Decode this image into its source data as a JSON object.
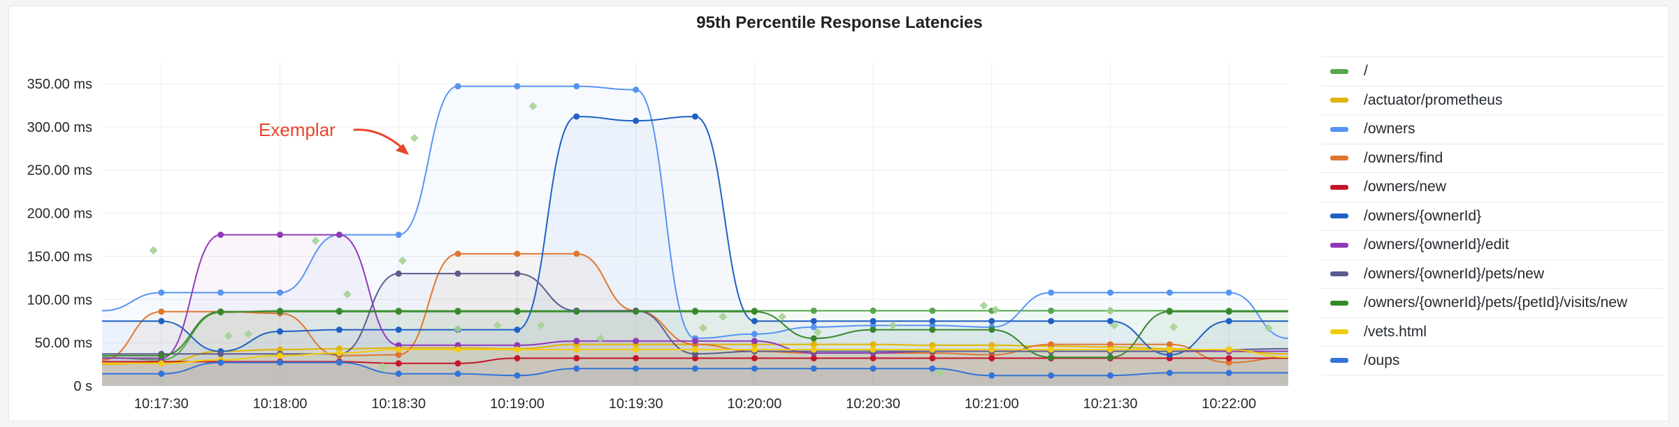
{
  "panel": {
    "title": "95th Percentile Response Latencies"
  },
  "annotation": {
    "text": "Exemplar"
  },
  "legend": [
    {
      "label": "/",
      "color": "#56a64b"
    },
    {
      "label": "/actuator/prometheus",
      "color": "#e0b400"
    },
    {
      "label": "/owners",
      "color": "#5794f2"
    },
    {
      "label": "/owners/find",
      "color": "#e0752d"
    },
    {
      "label": "/owners/new",
      "color": "#c4162a"
    },
    {
      "label": "/owners/{ownerId}",
      "color": "#1f60c4"
    },
    {
      "label": "/owners/{ownerId}/edit",
      "color": "#8f3bb8"
    },
    {
      "label": "/owners/{ownerId}/pets/new",
      "color": "#5d5c8e"
    },
    {
      "label": "/owners/{ownerId}/pets/{petId}/visits/new",
      "color": "#37872d"
    },
    {
      "label": "/vets.html",
      "color": "#f2cc0c"
    },
    {
      "label": "/oups",
      "color": "#3274d9"
    }
  ],
  "chart_data": {
    "type": "line",
    "title": "95th Percentile Response Latencies",
    "ylim": [
      0,
      375
    ],
    "yticks": [
      0,
      50,
      100,
      150,
      200,
      250,
      300,
      350
    ],
    "ytick_labels": [
      "0 s",
      "50.00 ms",
      "100.00 ms",
      "150.00 ms",
      "200.00 ms",
      "250.00 ms",
      "300.00 ms",
      "350.00 ms"
    ],
    "xlim": [
      "10:17:15",
      "10:22:15"
    ],
    "xticks": [
      "10:17:30",
      "10:18:00",
      "10:18:30",
      "10:19:00",
      "10:19:30",
      "10:20:00",
      "10:20:30",
      "10:21:00",
      "10:21:30",
      "10:22:00"
    ],
    "x": [
      "10:17:15",
      "10:17:30",
      "10:17:45",
      "10:18:00",
      "10:18:15",
      "10:18:30",
      "10:18:45",
      "10:19:00",
      "10:19:15",
      "10:19:30",
      "10:19:45",
      "10:20:00",
      "10:20:15",
      "10:20:30",
      "10:20:45",
      "10:21:00",
      "10:21:15",
      "10:21:30",
      "10:21:45",
      "10:22:00",
      "10:22:15"
    ],
    "grid": true,
    "legend_position": "right",
    "series": [
      {
        "name": "/",
        "color": "#56a64b",
        "values": [
          33,
          30,
          85,
          87,
          87,
          87,
          87,
          87,
          87,
          87,
          87,
          87,
          87,
          87,
          87,
          87,
          87,
          87,
          87,
          87,
          87
        ]
      },
      {
        "name": "/actuator/prometheus",
        "color": "#e0b400",
        "values": [
          25,
          27,
          40,
          42,
          43,
          44,
          44,
          43,
          48,
          48,
          48,
          48,
          48,
          48,
          47,
          47,
          46,
          45,
          43,
          40,
          37
        ]
      },
      {
        "name": "/owners",
        "color": "#5794f2",
        "values": [
          87,
          108,
          108,
          108,
          175,
          175,
          347,
          347,
          347,
          343,
          55,
          60,
          68,
          70,
          70,
          68,
          108,
          108,
          108,
          108,
          55
        ]
      },
      {
        "name": "/owners/find",
        "color": "#e0752d",
        "values": [
          30,
          86,
          86,
          84,
          35,
          36,
          153,
          153,
          153,
          87,
          48,
          40,
          38,
          38,
          38,
          36,
          48,
          48,
          48,
          27,
          33
        ]
      },
      {
        "name": "/owners/new",
        "color": "#c4162a",
        "values": [
          28,
          28,
          28,
          28,
          28,
          26,
          26,
          32,
          32,
          32,
          32,
          32,
          32,
          32,
          32,
          32,
          32,
          32,
          32,
          32,
          32
        ]
      },
      {
        "name": "/owners/{ownerId}",
        "color": "#1f60c4",
        "values": [
          75,
          75,
          40,
          63,
          65,
          65,
          65,
          65,
          312,
          307,
          312,
          75,
          75,
          75,
          75,
          75,
          75,
          75,
          36,
          75,
          75
        ]
      },
      {
        "name": "/owners/{ownerId}/edit",
        "color": "#8f3bb8",
        "values": [
          32,
          32,
          175,
          175,
          175,
          47,
          47,
          47,
          52,
          52,
          52,
          52,
          38,
          38,
          40,
          40,
          40,
          40,
          40,
          40,
          40
        ]
      },
      {
        "name": "/owners/{ownerId}/pets/new",
        "color": "#5d5c8e",
        "values": [
          37,
          37,
          37,
          37,
          37,
          130,
          130,
          130,
          87,
          87,
          37,
          40,
          40,
          40,
          40,
          40,
          40,
          40,
          40,
          42,
          43
        ]
      },
      {
        "name": "/owners/{ownerId}/pets/{petId}/visits/new",
        "color": "#37872d",
        "values": [
          35,
          35,
          86,
          86,
          86,
          86,
          86,
          86,
          86,
          86,
          86,
          86,
          55,
          65,
          65,
          65,
          33,
          33,
          86,
          86,
          86
        ]
      },
      {
        "name": "/vets.html",
        "color": "#f2cc0c",
        "values": [
          26,
          26,
          30,
          35,
          38,
          42,
          42,
          42,
          42,
          42,
          42,
          42,
          42,
          42,
          42,
          42,
          42,
          42,
          42,
          42,
          33
        ]
      },
      {
        "name": "/oups",
        "color": "#3274d9",
        "values": [
          14,
          14,
          27,
          27,
          27,
          14,
          14,
          12,
          20,
          20,
          20,
          20,
          20,
          20,
          20,
          12,
          12,
          12,
          15,
          15,
          15
        ]
      }
    ],
    "exemplars": {
      "color": "#a5d295",
      "points": [
        {
          "x": "10:17:28",
          "y": 157
        },
        {
          "x": "10:17:47",
          "y": 58
        },
        {
          "x": "10:17:52",
          "y": 60
        },
        {
          "x": "10:18:09",
          "y": 168
        },
        {
          "x": "10:18:17",
          "y": 106
        },
        {
          "x": "10:18:26",
          "y": 22
        },
        {
          "x": "10:18:31",
          "y": 145
        },
        {
          "x": "10:18:34",
          "y": 287
        },
        {
          "x": "10:18:45",
          "y": 66
        },
        {
          "x": "10:18:55",
          "y": 70
        },
        {
          "x": "10:19:04",
          "y": 324
        },
        {
          "x": "10:19:06",
          "y": 70
        },
        {
          "x": "10:19:21",
          "y": 55
        },
        {
          "x": "10:19:47",
          "y": 67
        },
        {
          "x": "10:19:52",
          "y": 80
        },
        {
          "x": "10:20:07",
          "y": 80
        },
        {
          "x": "10:20:16",
          "y": 62
        },
        {
          "x": "10:20:35",
          "y": 70
        },
        {
          "x": "10:20:47",
          "y": 15
        },
        {
          "x": "10:20:58",
          "y": 93
        },
        {
          "x": "10:21:01",
          "y": 88
        },
        {
          "x": "10:21:30",
          "y": 87
        },
        {
          "x": "10:21:31",
          "y": 70
        },
        {
          "x": "10:21:46",
          "y": 68
        },
        {
          "x": "10:22:10",
          "y": 67
        }
      ]
    }
  }
}
